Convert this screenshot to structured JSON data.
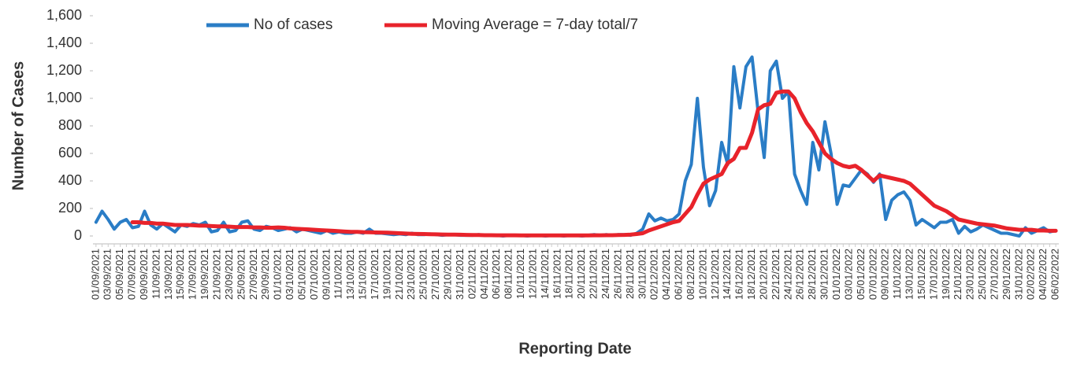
{
  "chart_data": {
    "type": "line",
    "x_label": "Reporting Date",
    "y_label": "Number of Cases",
    "categories": [
      "01/09/2021",
      null,
      "03/09/2021",
      null,
      "05/09/2021",
      null,
      "07/09/2021",
      null,
      "09/09/2021",
      null,
      "11/09/2021",
      null,
      "13/09/2021",
      null,
      "15/09/2021",
      null,
      "17/09/2021",
      null,
      "19/09/2021",
      null,
      "21/09/2021",
      null,
      "23/09/2021",
      null,
      "25/09/2021",
      null,
      "27/09/2021",
      null,
      "29/09/2021",
      null,
      "01/10/2021",
      null,
      "03/10/2021",
      null,
      "05/10/2021",
      null,
      "07/10/2021",
      null,
      "09/10/2021",
      null,
      "11/10/2021",
      null,
      "13/10/2021",
      null,
      "15/10/2021",
      null,
      "17/10/2021",
      null,
      "19/10/2021",
      null,
      "21/10/2021",
      null,
      "23/10/2021",
      null,
      "25/10/2021",
      null,
      "27/10/2021",
      null,
      "29/10/2021",
      null,
      "31/10/2021",
      null,
      "02/11/2021",
      null,
      "04/11/2021",
      null,
      "06/11/2021",
      null,
      "08/11/2021",
      null,
      "10/11/2021",
      null,
      "12/11/2021",
      null,
      "14/11/2021",
      null,
      "16/11/2021",
      null,
      "18/11/2021",
      null,
      "20/11/2021",
      null,
      "22/11/2021",
      null,
      "24/11/2021",
      null,
      "26/11/2021",
      null,
      "28/11/2021",
      null,
      "30/11/2021",
      null,
      "02/12/2021",
      null,
      "04/12/2021",
      null,
      "06/12/2021",
      null,
      "08/12/2021",
      null,
      "10/12/2021",
      null,
      "12/12/2021",
      null,
      "14/12/2021",
      null,
      "16/12/2021",
      null,
      "18/12/2021",
      null,
      "20/12/2021",
      null,
      "22/12/2021",
      null,
      "24/12/2021",
      null,
      "26/12/2021",
      null,
      "28/12/2021",
      null,
      "30/12/2021",
      null,
      "01/01/2022",
      null,
      "03/01/2022",
      null,
      "05/01/2022",
      null,
      "07/01/2022",
      null,
      "09/01/2022",
      null,
      "11/01/2022",
      null,
      "13/01/2022",
      null,
      "15/01/2022",
      null,
      "17/01/2022",
      null,
      "19/01/2022",
      null,
      "21/01/2022",
      null,
      "23/01/2022",
      null,
      "25/01/2022",
      null,
      "27/01/2022",
      null,
      "29/01/2022",
      null,
      "31/01/2022",
      null,
      "02/02/2022",
      null,
      "04/02/2022",
      null,
      "06/02/2022"
    ],
    "series": [
      {
        "name": "No of cases",
        "color": "#2a7dc6",
        "values": [
          100,
          180,
          120,
          50,
          100,
          120,
          60,
          70,
          180,
          80,
          50,
          90,
          60,
          30,
          80,
          70,
          90,
          80,
          100,
          30,
          40,
          100,
          30,
          40,
          100,
          110,
          50,
          40,
          70,
          60,
          40,
          50,
          60,
          30,
          50,
          40,
          30,
          20,
          40,
          20,
          30,
          20,
          20,
          30,
          20,
          50,
          20,
          20,
          15,
          10,
          15,
          10,
          20,
          10,
          10,
          15,
          10,
          5,
          10,
          10,
          5,
          5,
          5,
          10,
          5,
          5,
          5,
          0,
          5,
          5,
          5,
          0,
          5,
          5,
          0,
          5,
          5,
          0,
          5,
          5,
          0,
          5,
          10,
          5,
          10,
          5,
          10,
          10,
          5,
          20,
          50,
          160,
          110,
          130,
          110,
          120,
          160,
          400,
          520,
          1000,
          500,
          220,
          330,
          680,
          520,
          1230,
          930,
          1230,
          1300,
          900,
          570,
          1200,
          1270,
          1000,
          1050,
          450,
          330,
          230,
          680,
          480,
          830,
          600,
          230,
          370,
          360,
          420,
          480,
          450,
          390,
          450,
          120,
          260,
          300,
          320,
          260,
          80,
          120,
          90,
          60,
          100,
          100,
          120,
          20,
          70,
          30,
          50,
          80,
          60,
          40,
          20,
          20,
          10,
          0,
          60,
          20,
          40,
          60,
          30,
          40
        ]
      },
      {
        "name": "Moving Average = 7-day total/7",
        "color": "#e8232b",
        "values": [
          null,
          null,
          null,
          null,
          null,
          null,
          100,
          100,
          95,
          95,
          90,
          90,
          85,
          80,
          80,
          80,
          78,
          75,
          75,
          72,
          70,
          70,
          68,
          65,
          65,
          65,
          62,
          62,
          60,
          60,
          62,
          60,
          55,
          52,
          50,
          48,
          45,
          42,
          40,
          38,
          35,
          32,
          30,
          30,
          28,
          27,
          26,
          25,
          24,
          22,
          20,
          18,
          16,
          15,
          14,
          13,
          12,
          11,
          10,
          10,
          9,
          8,
          7,
          7,
          6,
          6,
          5,
          5,
          5,
          5,
          4,
          4,
          4,
          4,
          4,
          4,
          4,
          4,
          4,
          4,
          4,
          4,
          5,
          5,
          6,
          6,
          7,
          8,
          10,
          14,
          20,
          40,
          55,
          70,
          85,
          100,
          110,
          160,
          210,
          300,
          380,
          410,
          430,
          450,
          530,
          560,
          640,
          640,
          750,
          920,
          950,
          960,
          1040,
          1050,
          1050,
          1000,
          900,
          820,
          760,
          680,
          600,
          560,
          530,
          510,
          500,
          510,
          480,
          440,
          400,
          440,
          430,
          420,
          410,
          400,
          380,
          340,
          300,
          260,
          220,
          200,
          180,
          150,
          120,
          110,
          100,
          90,
          85,
          80,
          75,
          65,
          55,
          50,
          45,
          45,
          45,
          40,
          40,
          38,
          38
        ]
      }
    ],
    "ylim": [
      0,
      1600
    ],
    "yticks": [
      0,
      200,
      400,
      600,
      800,
      {
        "value": 1000,
        "label": "1,000"
      },
      {
        "value": 1200,
        "label": "1,200"
      },
      {
        "value": 1400,
        "label": "1,400"
      },
      {
        "value": 1600,
        "label": "1,600"
      }
    ],
    "grid": false,
    "legend": "top"
  }
}
